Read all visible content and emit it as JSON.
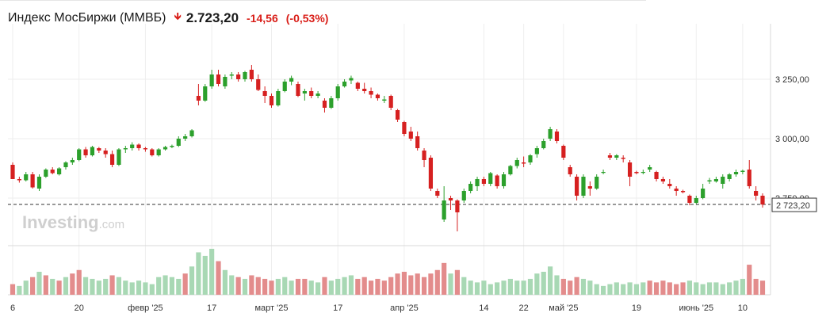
{
  "header": {
    "title": "Индекс МосБиржи (MMBБ)",
    "arrow_icon": "arrow-down-icon",
    "price": "2.723,20",
    "change": "-14,56",
    "change_pct": "(-0,53%)",
    "change_color": "#d91e18"
  },
  "watermark": {
    "brand": "Investing",
    "suffix": ".com"
  },
  "last_price_label": "2 723,20",
  "colors": {
    "up": "#2ca02c",
    "down": "#d62020",
    "vol_up": "#a8d8b4",
    "vol_down": "#e38c8c"
  },
  "chart_data": {
    "type": "candlestick",
    "y_axis": {
      "min": 2600,
      "max": 3450,
      "ticks": [
        2750,
        3000,
        3250
      ],
      "tick_labels": [
        "2 750,00",
        "3 000,00",
        "3 250,00"
      ]
    },
    "x_labels": [
      {
        "i": 0,
        "label": "6"
      },
      {
        "i": 10,
        "label": "20"
      },
      {
        "i": 20,
        "label": "февр '25"
      },
      {
        "i": 30,
        "label": "17"
      },
      {
        "i": 39,
        "label": "март '25"
      },
      {
        "i": 49,
        "label": "17"
      },
      {
        "i": 59,
        "label": "апр '25"
      },
      {
        "i": 71,
        "label": "14"
      },
      {
        "i": 77,
        "label": "22"
      },
      {
        "i": 83,
        "label": "май '25"
      },
      {
        "i": 94,
        "label": "19"
      },
      {
        "i": 103,
        "label": "июнь '25"
      },
      {
        "i": 110,
        "label": "10"
      }
    ],
    "last_price": 2723.2,
    "candles": [
      [
        2890,
        2900,
        2830,
        2830
      ],
      [
        2830,
        2840,
        2815,
        2825
      ],
      [
        2825,
        2860,
        2820,
        2850
      ],
      [
        2850,
        2860,
        2790,
        2795
      ],
      [
        2790,
        2850,
        2780,
        2840
      ],
      [
        2840,
        2875,
        2835,
        2870
      ],
      [
        2870,
        2880,
        2850,
        2855
      ],
      [
        2850,
        2880,
        2845,
        2875
      ],
      [
        2880,
        2905,
        2870,
        2900
      ],
      [
        2900,
        2920,
        2890,
        2910
      ],
      [
        2910,
        2960,
        2905,
        2955
      ],
      [
        2955,
        2965,
        2920,
        2930
      ],
      [
        2930,
        2970,
        2925,
        2965
      ],
      [
        2960,
        2965,
        2940,
        2950
      ],
      [
        2950,
        2960,
        2920,
        2935
      ],
      [
        2935,
        2950,
        2880,
        2890
      ],
      [
        2890,
        2960,
        2885,
        2955
      ],
      [
        2955,
        2970,
        2940,
        2960
      ],
      [
        2960,
        2985,
        2950,
        2975
      ],
      [
        2975,
        2980,
        2950,
        2960
      ],
      [
        2960,
        2965,
        2945,
        2955
      ],
      [
        2955,
        2960,
        2925,
        2930
      ],
      [
        2930,
        2960,
        2925,
        2955
      ],
      [
        2955,
        2970,
        2950,
        2965
      ],
      [
        2965,
        2975,
        2960,
        2970
      ],
      [
        2970,
        3010,
        2965,
        3000
      ],
      [
        3000,
        3020,
        2990,
        3010
      ],
      [
        3010,
        3040,
        3005,
        3035
      ],
      [
        3180,
        3230,
        3140,
        3160
      ],
      [
        3160,
        3230,
        3155,
        3220
      ],
      [
        3220,
        3290,
        3210,
        3270
      ],
      [
        3270,
        3290,
        3220,
        3230
      ],
      [
        3220,
        3270,
        3210,
        3260
      ],
      [
        3265,
        3280,
        3250,
        3270
      ],
      [
        3270,
        3280,
        3240,
        3250
      ],
      [
        3250,
        3285,
        3240,
        3280
      ],
      [
        3290,
        3310,
        3240,
        3250
      ],
      [
        3250,
        3270,
        3200,
        3205
      ],
      [
        3200,
        3220,
        3150,
        3180
      ],
      [
        3180,
        3190,
        3130,
        3140
      ],
      [
        3140,
        3210,
        3135,
        3200
      ],
      [
        3200,
        3250,
        3195,
        3240
      ],
      [
        3240,
        3265,
        3225,
        3255
      ],
      [
        3230,
        3240,
        3175,
        3180
      ],
      [
        3190,
        3210,
        3160,
        3200
      ],
      [
        3200,
        3215,
        3170,
        3180
      ],
      [
        3180,
        3200,
        3170,
        3190
      ],
      [
        3160,
        3170,
        3110,
        3130
      ],
      [
        3130,
        3180,
        3125,
        3170
      ],
      [
        3170,
        3230,
        3160,
        3220
      ],
      [
        3220,
        3250,
        3215,
        3240
      ],
      [
        3245,
        3265,
        3230,
        3255
      ],
      [
        3235,
        3240,
        3200,
        3210
      ],
      [
        3210,
        3235,
        3190,
        3200
      ],
      [
        3200,
        3215,
        3170,
        3185
      ],
      [
        3185,
        3190,
        3160,
        3170
      ],
      [
        3160,
        3180,
        3150,
        3165
      ],
      [
        3180,
        3185,
        3120,
        3130
      ],
      [
        3120,
        3125,
        3070,
        3080
      ],
      [
        3070,
        3075,
        3010,
        3020
      ],
      [
        3030,
        3050,
        2990,
        3000
      ],
      [
        3010,
        3030,
        2950,
        2960
      ],
      [
        2950,
        2960,
        2880,
        2910
      ],
      [
        2920,
        2930,
        2780,
        2790
      ],
      [
        2780,
        2790,
        2750,
        2760
      ],
      [
        2660,
        2800,
        2650,
        2740
      ],
      [
        2750,
        2760,
        2700,
        2740
      ],
      [
        2740,
        2745,
        2610,
        2690
      ],
      [
        2740,
        2790,
        2730,
        2780
      ],
      [
        2780,
        2820,
        2770,
        2810
      ],
      [
        2800,
        2840,
        2780,
        2830
      ],
      [
        2830,
        2840,
        2800,
        2810
      ],
      [
        2810,
        2860,
        2800,
        2855
      ],
      [
        2845,
        2850,
        2790,
        2800
      ],
      [
        2800,
        2860,
        2790,
        2850
      ],
      [
        2850,
        2890,
        2845,
        2885
      ],
      [
        2885,
        2920,
        2875,
        2910
      ],
      [
        2900,
        2925,
        2880,
        2895
      ],
      [
        2900,
        2935,
        2890,
        2930
      ],
      [
        2935,
        2970,
        2920,
        2960
      ],
      [
        2960,
        3000,
        2955,
        2990
      ],
      [
        3000,
        3050,
        2990,
        3040
      ],
      [
        3030,
        3040,
        2980,
        2990
      ],
      [
        2970,
        2975,
        2910,
        2920
      ],
      [
        2880,
        2890,
        2840,
        2850
      ],
      [
        2840,
        2850,
        2740,
        2760
      ],
      [
        2760,
        2850,
        2750,
        2840
      ],
      [
        2800,
        2820,
        2760,
        2790
      ],
      [
        2790,
        2850,
        2785,
        2840
      ],
      [
        2860,
        2870,
        2850,
        2860
      ],
      [
        2930,
        2940,
        2910,
        2920
      ],
      [
        2920,
        2935,
        2910,
        2930
      ],
      [
        2920,
        2930,
        2900,
        2915
      ],
      [
        2900,
        2910,
        2800,
        2840
      ],
      [
        2860,
        2865,
        2850,
        2855
      ],
      [
        2860,
        2870,
        2850,
        2860
      ],
      [
        2870,
        2890,
        2860,
        2880
      ],
      [
        2860,
        2865,
        2820,
        2830
      ],
      [
        2830,
        2840,
        2810,
        2820
      ],
      [
        2810,
        2830,
        2790,
        2800
      ],
      [
        2790,
        2800,
        2760,
        2780
      ],
      [
        2780,
        2785,
        2770,
        2775
      ],
      [
        2760,
        2765,
        2720,
        2730
      ],
      [
        2730,
        2760,
        2725,
        2750
      ],
      [
        2750,
        2810,
        2745,
        2790
      ],
      [
        2820,
        2835,
        2810,
        2825
      ],
      [
        2820,
        2840,
        2815,
        2830
      ],
      [
        2810,
        2850,
        2790,
        2840
      ],
      [
        2830,
        2855,
        2820,
        2850
      ],
      [
        2850,
        2870,
        2840,
        2860
      ],
      [
        2860,
        2870,
        2850,
        2865
      ],
      [
        2870,
        2910,
        2790,
        2800
      ],
      [
        2780,
        2800,
        2740,
        2760
      ],
      [
        2760,
        2770,
        2710,
        2723
      ]
    ],
    "volumes": [
      [
        6,
        "down"
      ],
      [
        5,
        "up"
      ],
      [
        8,
        "up"
      ],
      [
        10,
        "down"
      ],
      [
        13,
        "up"
      ],
      [
        11,
        "down"
      ],
      [
        9,
        "up"
      ],
      [
        8,
        "down"
      ],
      [
        10,
        "up"
      ],
      [
        12,
        "down"
      ],
      [
        14,
        "down"
      ],
      [
        10,
        "up"
      ],
      [
        9,
        "up"
      ],
      [
        8,
        "up"
      ],
      [
        9,
        "up"
      ],
      [
        11,
        "down"
      ],
      [
        10,
        "up"
      ],
      [
        8,
        "up"
      ],
      [
        7,
        "up"
      ],
      [
        8,
        "up"
      ],
      [
        7,
        "up"
      ],
      [
        6,
        "up"
      ],
      [
        10,
        "up"
      ],
      [
        11,
        "up"
      ],
      [
        10,
        "up"
      ],
      [
        9,
        "up"
      ],
      [
        12,
        "down"
      ],
      [
        16,
        "up"
      ],
      [
        24,
        "up"
      ],
      [
        22,
        "up"
      ],
      [
        26,
        "up"
      ],
      [
        19,
        "down"
      ],
      [
        14,
        "up"
      ],
      [
        11,
        "up"
      ],
      [
        10,
        "down"
      ],
      [
        9,
        "up"
      ],
      [
        11,
        "down"
      ],
      [
        10,
        "down"
      ],
      [
        9,
        "down"
      ],
      [
        8,
        "down"
      ],
      [
        9,
        "up"
      ],
      [
        10,
        "up"
      ],
      [
        8,
        "up"
      ],
      [
        9,
        "down"
      ],
      [
        9,
        "down"
      ],
      [
        8,
        "up"
      ],
      [
        7,
        "up"
      ],
      [
        10,
        "down"
      ],
      [
        8,
        "up"
      ],
      [
        9,
        "up"
      ],
      [
        10,
        "up"
      ],
      [
        11,
        "up"
      ],
      [
        9,
        "down"
      ],
      [
        10,
        "down"
      ],
      [
        8,
        "down"
      ],
      [
        9,
        "down"
      ],
      [
        8,
        "down"
      ],
      [
        10,
        "down"
      ],
      [
        12,
        "down"
      ],
      [
        13,
        "down"
      ],
      [
        11,
        "down"
      ],
      [
        12,
        "down"
      ],
      [
        10,
        "down"
      ],
      [
        12,
        "down"
      ],
      [
        14,
        "down"
      ],
      [
        18,
        "down"
      ],
      [
        12,
        "up"
      ],
      [
        14,
        "down"
      ],
      [
        10,
        "up"
      ],
      [
        8,
        "up"
      ],
      [
        7,
        "up"
      ],
      [
        8,
        "up"
      ],
      [
        6,
        "up"
      ],
      [
        7,
        "up"
      ],
      [
        8,
        "up"
      ],
      [
        9,
        "up"
      ],
      [
        8,
        "up"
      ],
      [
        8,
        "up"
      ],
      [
        9,
        "up"
      ],
      [
        12,
        "up"
      ],
      [
        13,
        "up"
      ],
      [
        16,
        "up"
      ],
      [
        11,
        "up"
      ],
      [
        9,
        "down"
      ],
      [
        8,
        "down"
      ],
      [
        10,
        "down"
      ],
      [
        9,
        "up"
      ],
      [
        8,
        "up"
      ],
      [
        6,
        "up"
      ],
      [
        5,
        "up"
      ],
      [
        6,
        "up"
      ],
      [
        7,
        "up"
      ],
      [
        6,
        "up"
      ],
      [
        7,
        "up"
      ],
      [
        6,
        "up"
      ],
      [
        7,
        "up"
      ],
      [
        8,
        "down"
      ],
      [
        7,
        "down"
      ],
      [
        8,
        "down"
      ],
      [
        7,
        "down"
      ],
      [
        6,
        "down"
      ],
      [
        7,
        "down"
      ],
      [
        8,
        "up"
      ],
      [
        7,
        "up"
      ],
      [
        6,
        "up"
      ],
      [
        7,
        "up"
      ],
      [
        7,
        "up"
      ],
      [
        6,
        "up"
      ],
      [
        7,
        "up"
      ],
      [
        8,
        "up"
      ],
      [
        9,
        "up"
      ],
      [
        17,
        "down"
      ],
      [
        9,
        "down"
      ],
      [
        8,
        "down"
      ]
    ]
  }
}
